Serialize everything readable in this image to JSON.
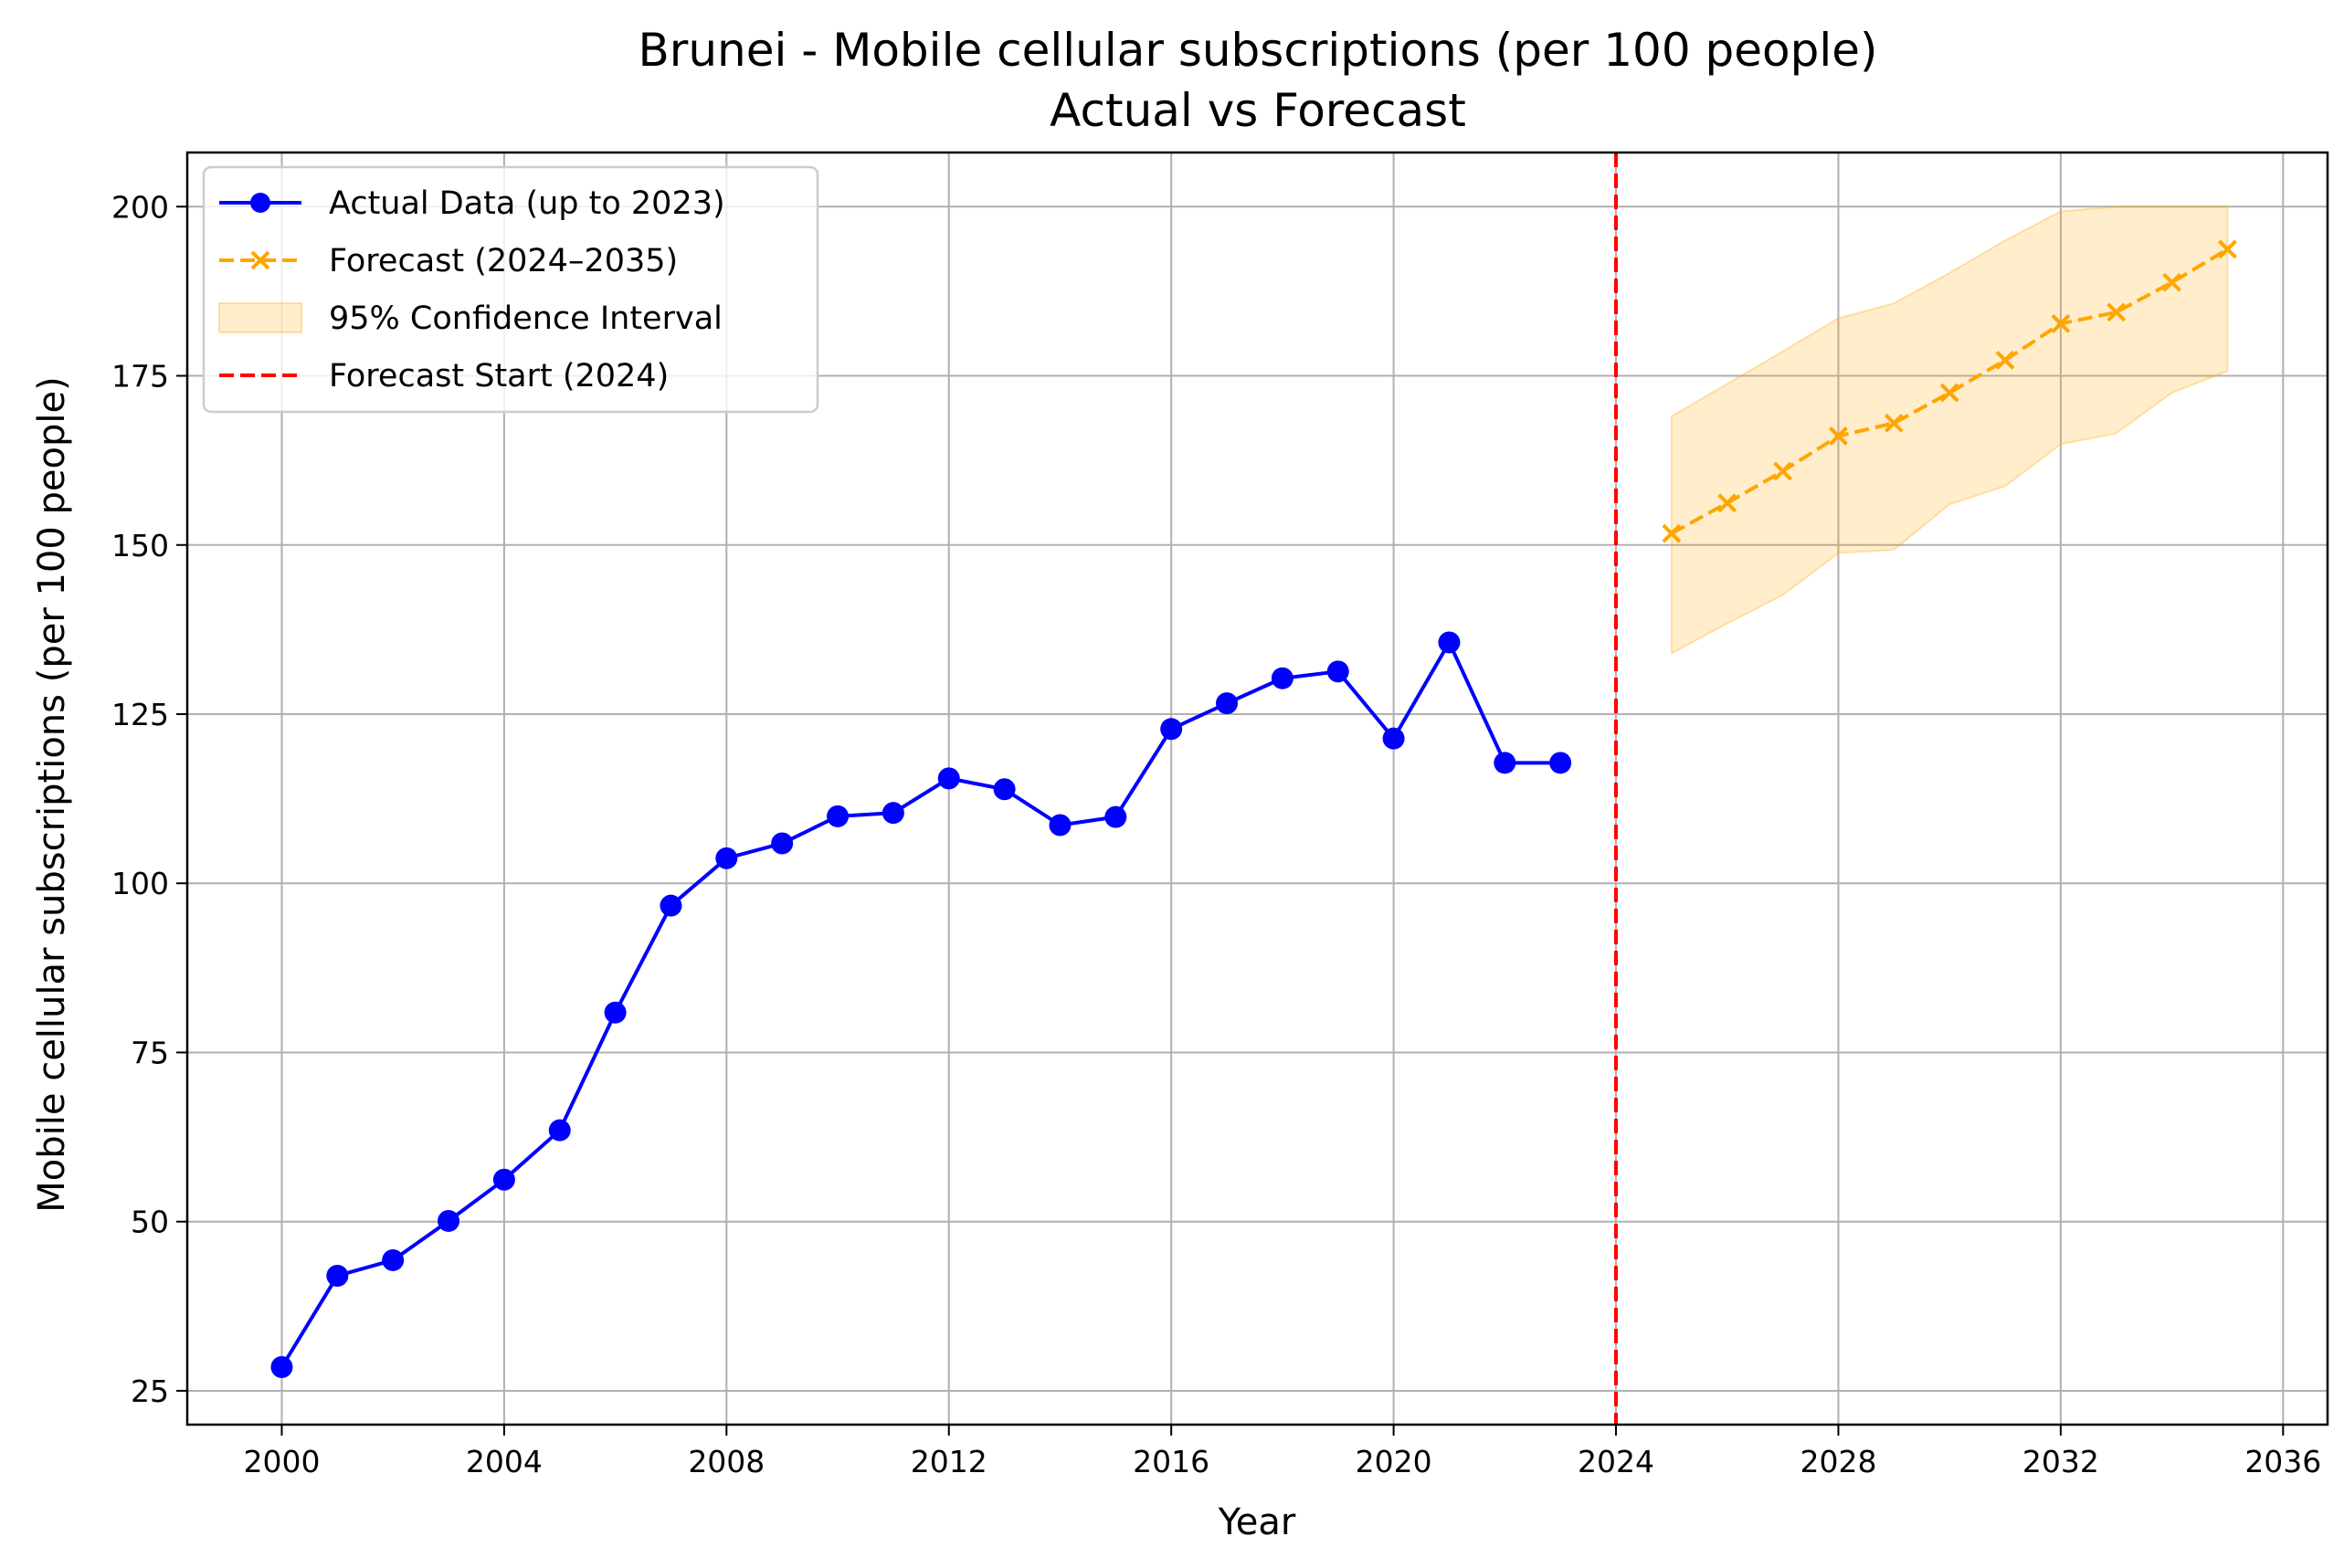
{
  "chart_data": {
    "type": "line",
    "title": "Brunei - Mobile cellular subscriptions (per 100 people)",
    "subtitle": "Actual vs Forecast",
    "xlabel": "Year",
    "ylabel": "Mobile cellular subscriptions (per 100 people)",
    "xlim": [
      1998.3,
      2036.8
    ],
    "ylim": [
      20,
      208
    ],
    "xticks": [
      2000,
      2004,
      2008,
      2012,
      2016,
      2020,
      2024,
      2028,
      2032,
      2036
    ],
    "yticks": [
      25,
      50,
      75,
      100,
      125,
      150,
      175,
      200
    ],
    "grid": true,
    "legend_position": "top-left",
    "series": [
      {
        "name": "Actual Data (up to 2023)",
        "color": "#0000ff",
        "marker": "circle",
        "line_style": "solid",
        "x": [
          2000,
          2001,
          2002,
          2003,
          2004,
          2005,
          2006,
          2007,
          2008,
          2009,
          2010,
          2011,
          2012,
          2013,
          2014,
          2015,
          2016,
          2017,
          2018,
          2019,
          2020,
          2021,
          2022,
          2023
        ],
        "y": [
          28.5,
          42,
          44.3,
          50.1,
          56.2,
          63.5,
          80.9,
          96.7,
          103.7,
          105.9,
          109.9,
          110.4,
          115.5,
          113.9,
          108.6,
          109.8,
          122.8,
          126.6,
          130.3,
          131.3,
          121.4,
          135.6,
          117.8,
          117.8
        ]
      },
      {
        "name": "Forecast (2024–2035)",
        "color": "#ffa500",
        "marker": "x",
        "line_style": "dashed",
        "x": [
          2025,
          2026,
          2027,
          2028,
          2029,
          2030,
          2031,
          2032,
          2033,
          2034,
          2035
        ],
        "y": [
          151.7,
          156.2,
          160.9,
          166.1,
          168,
          172.5,
          177.3,
          182.7,
          184.4,
          188.8,
          193.7
        ]
      }
    ],
    "confidence_interval": {
      "name": "95% Confidence Interval",
      "color": "#ffa500",
      "opacity": 0.2,
      "x": [
        2025,
        2026,
        2027,
        2028,
        2029,
        2030,
        2031,
        2032,
        2033,
        2034,
        2035
      ],
      "lower": [
        134,
        138.4,
        142.6,
        148.8,
        149.3,
        156,
        158.7,
        164.9,
        166.5,
        172.5,
        175.7
      ],
      "upper": [
        169,
        173.8,
        178.6,
        183.5,
        185.7,
        190.2,
        195,
        199.3,
        200,
        200,
        200
      ]
    },
    "forecast_start": {
      "name": "Forecast Start (2024)",
      "x": 2024,
      "color": "#ff0000",
      "line_style": "dashed"
    }
  }
}
